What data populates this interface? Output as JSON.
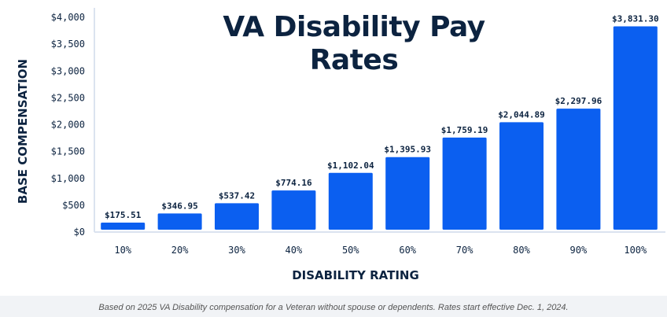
{
  "colors": {
    "bar": "#0b5ff0",
    "text": "#0c2340",
    "axis": "#dbe3ef"
  },
  "footer": {
    "note": "Based on 2025 VA Disability compensation for a Veteran without spouse or dependents. Rates start effective Dec. 1, 2024."
  },
  "chart_data": {
    "type": "bar",
    "title": "VA Disability Pay Rates",
    "xlabel": "DISABILITY RATING",
    "ylabel": "BASE COMPENSATION",
    "categories": [
      "10%",
      "20%",
      "30%",
      "40%",
      "50%",
      "60%",
      "70%",
      "80%",
      "90%",
      "100%"
    ],
    "values": [
      175.51,
      346.95,
      537.42,
      774.16,
      1102.04,
      1395.93,
      1759.19,
      2044.89,
      2297.96,
      3831.3
    ],
    "value_labels": [
      "$175.51",
      "$346.95",
      "$537.42",
      "$774.16",
      "$1,102.04",
      "$1,395.93",
      "$1,759.19",
      "$2,044.89",
      "$2,297.96",
      "$3,831.30"
    ],
    "ylim": [
      0,
      4000
    ],
    "yticks": [
      0,
      500,
      1000,
      1500,
      2000,
      2500,
      3000,
      3500,
      4000
    ],
    "ytick_labels": [
      "$0",
      "$500",
      "$1,000",
      "$1,500",
      "$2,000",
      "$2,500",
      "$3,000",
      "$3,500",
      "$4,000"
    ],
    "grid": false,
    "legend": "none"
  }
}
